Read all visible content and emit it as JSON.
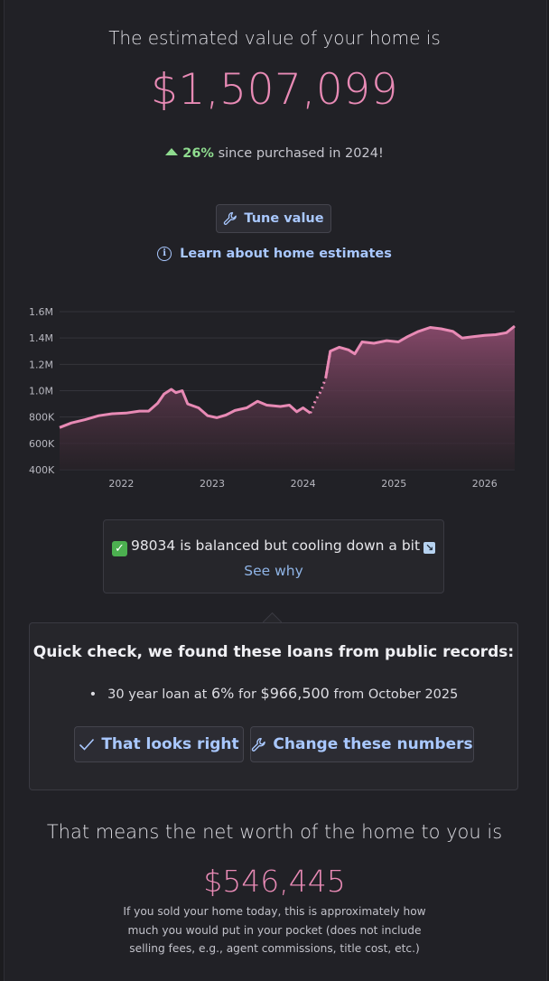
{
  "header": {
    "headline": "The estimated value of your home is",
    "value": "$1,507,099"
  },
  "change": {
    "percent": "26%",
    "text": "since purchased in 2024!"
  },
  "tune_button": {
    "label": "Tune value"
  },
  "learn_link": {
    "label": "Learn about home estimates"
  },
  "chart_data": {
    "type": "area",
    "y_ticks": [
      "1.6M",
      "1.4M",
      "1.2M",
      "1.0M",
      "800K",
      "600K",
      "400K"
    ],
    "x_ticks": [
      "2022",
      "2023",
      "2024",
      "2025",
      "2026"
    ],
    "ylim": [
      400000,
      1600000
    ],
    "xlim": [
      2021.32,
      2026.33
    ],
    "series": [
      {
        "values": [
          [
            2021.32,
            720000
          ],
          [
            2021.45,
            755000
          ],
          [
            2021.6,
            780000
          ],
          [
            2021.75,
            810000
          ],
          [
            2021.9,
            825000
          ],
          [
            2022.05,
            830000
          ],
          [
            2022.2,
            845000
          ],
          [
            2022.3,
            845000
          ],
          [
            2022.4,
            905000
          ],
          [
            2022.47,
            975000
          ],
          [
            2022.55,
            1010000
          ],
          [
            2022.6,
            985000
          ],
          [
            2022.67,
            1000000
          ],
          [
            2022.73,
            900000
          ],
          [
            2022.85,
            870000
          ],
          [
            2022.95,
            810000
          ],
          [
            2023.05,
            795000
          ],
          [
            2023.15,
            815000
          ],
          [
            2023.25,
            850000
          ],
          [
            2023.38,
            870000
          ],
          [
            2023.5,
            920000
          ],
          [
            2023.6,
            890000
          ],
          [
            2023.75,
            880000
          ],
          [
            2023.85,
            890000
          ],
          [
            2023.93,
            840000
          ],
          [
            2024.0,
            870000
          ],
          [
            2024.08,
            830000
          ],
          [
            2024.14,
            930000
          ],
          [
            2024.2,
            1000000
          ],
          [
            2024.25,
            1100000
          ],
          [
            2024.3,
            1300000
          ],
          [
            2024.4,
            1330000
          ],
          [
            2024.5,
            1310000
          ],
          [
            2024.57,
            1280000
          ],
          [
            2024.65,
            1370000
          ],
          [
            2024.78,
            1360000
          ],
          [
            2024.92,
            1380000
          ],
          [
            2025.05,
            1370000
          ],
          [
            2025.15,
            1410000
          ],
          [
            2025.27,
            1450000
          ],
          [
            2025.4,
            1480000
          ],
          [
            2025.52,
            1470000
          ],
          [
            2025.65,
            1450000
          ],
          [
            2025.75,
            1400000
          ],
          [
            2025.87,
            1410000
          ],
          [
            2026.0,
            1420000
          ],
          [
            2026.12,
            1425000
          ],
          [
            2026.24,
            1440000
          ],
          [
            2026.33,
            1490000
          ]
        ]
      }
    ],
    "grid": true,
    "colors": {
      "line": "#e88ab5",
      "fill": "#7a3f5e"
    }
  },
  "market": {
    "text": "98034 is balanced but cooling down a bit",
    "link": "See why"
  },
  "loans": {
    "title": "Quick check, we found these loans from public records:",
    "item": {
      "prefix": "30 year loan at",
      "rate": "6%",
      "for_text": "for",
      "amount": "$966,500",
      "from_text": "from October 2025"
    },
    "confirm_label": "That looks right",
    "change_label": "Change these numbers"
  },
  "networth": {
    "headline": "That means the net worth of the home to you is",
    "value": "$546,445",
    "note": "If you sold your home today, this is approximately how much you would put in your pocket (does not include selling fees, e.g., agent commissions, title cost, etc.)"
  },
  "colors": {
    "accent": "#e88ab5",
    "link": "#a9c8ff",
    "positive": "#8fdc8f",
    "background": "#212126"
  }
}
